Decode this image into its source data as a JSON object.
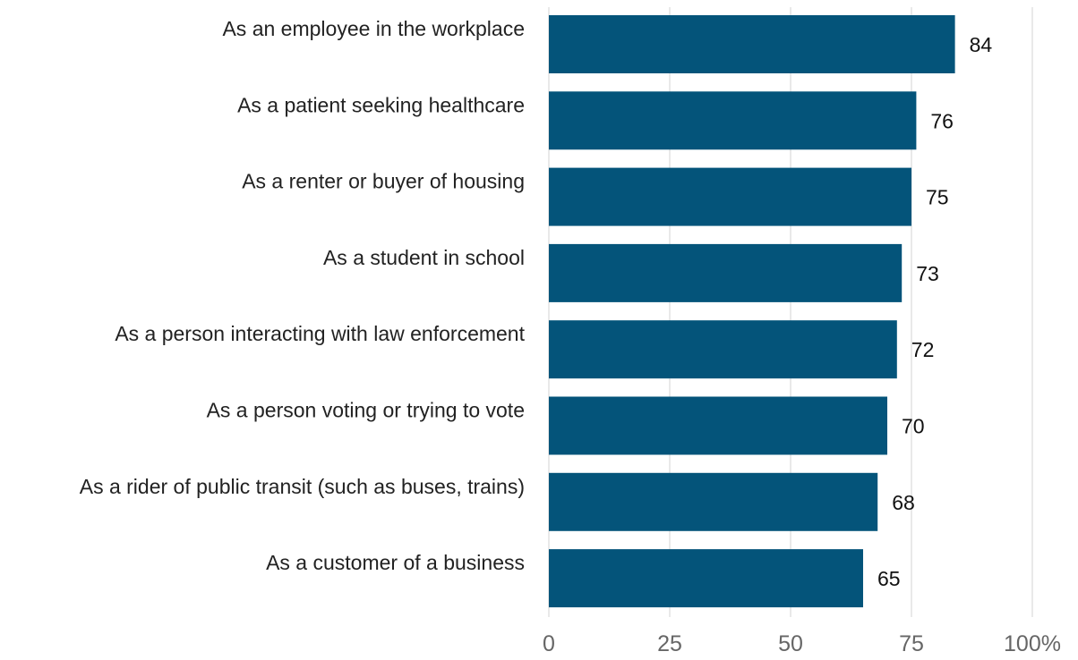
{
  "chart_data": {
    "type": "bar",
    "orientation": "horizontal",
    "categories": [
      "As an employee in the workplace",
      "As a patient seeking healthcare",
      "As a renter or buyer of housing",
      "As a student in school",
      "As a person interacting with law enforcement",
      "As a person voting or trying to vote",
      "As a rider of public transit (such as buses, trains)",
      "As a customer of a business"
    ],
    "values": [
      84,
      76,
      75,
      73,
      72,
      70,
      68,
      65
    ],
    "value_labels": [
      "84",
      "76",
      "75",
      "73",
      "72",
      "70",
      "68",
      "65"
    ],
    "x_ticks": [
      0,
      25,
      50,
      75,
      100
    ],
    "x_tick_labels": [
      "0",
      "25",
      "50",
      "75",
      "100%"
    ],
    "xlim": [
      0,
      100
    ],
    "bar_color": "#04547a",
    "grid": true,
    "legend": "none"
  }
}
